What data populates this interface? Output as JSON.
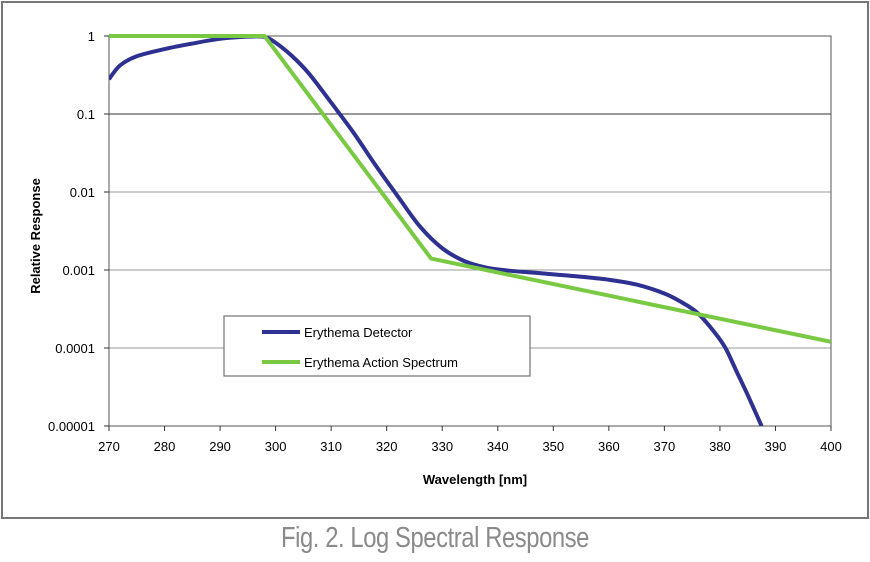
{
  "caption": "Fig. 2. Log Spectral Response",
  "chart_data": {
    "type": "line",
    "title": "",
    "xlabel": "Wavelength [nm]",
    "ylabel": "Relative Response",
    "xlim": [
      270,
      400
    ],
    "ylim": [
      1e-05,
      1
    ],
    "y_scale": "log",
    "grid": true,
    "legend_position": "bottom-left",
    "x_ticks": [
      "270",
      "280",
      "290",
      "300",
      "310",
      "320",
      "330",
      "340",
      "350",
      "360",
      "370",
      "380",
      "390",
      "400"
    ],
    "y_ticks": [
      "0.00001",
      "0.0001",
      "0.001",
      "0.01",
      "0.1",
      "1"
    ],
    "series": [
      {
        "name": "Erythema Detector",
        "color": "#2e3191",
        "x": [
          270,
          272,
          275,
          280,
          285,
          290,
          295,
          298,
          300,
          303,
          306,
          310,
          314,
          318,
          322,
          326,
          330,
          334,
          338,
          342,
          346,
          350,
          355,
          360,
          365,
          370,
          373,
          376,
          379,
          381,
          383,
          385,
          387.5
        ],
        "y": [
          0.28,
          0.42,
          0.55,
          0.68,
          0.8,
          0.92,
          0.98,
          0.97,
          0.82,
          0.55,
          0.33,
          0.14,
          0.058,
          0.022,
          0.0088,
          0.0036,
          0.0019,
          0.0013,
          0.00107,
          0.00098,
          0.00093,
          0.00088,
          0.00082,
          0.00075,
          0.00065,
          0.0005,
          0.00039,
          0.00028,
          0.00016,
          0.0001,
          5e-05,
          2.5e-05,
          1e-05
        ]
      },
      {
        "name": "Erythema Action Spectrum",
        "color": "#7ac943",
        "x": [
          270,
          298,
          328,
          400
        ],
        "y": [
          1,
          1,
          0.0014,
          0.00012
        ]
      }
    ]
  }
}
